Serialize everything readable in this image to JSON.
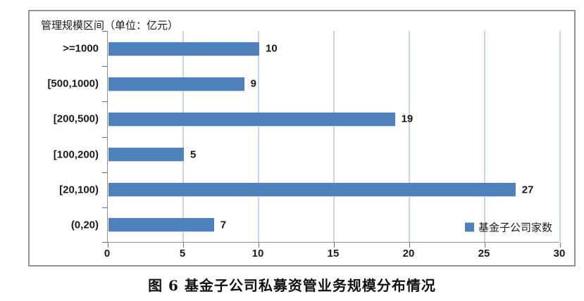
{
  "chart_data": {
    "type": "bar",
    "orientation": "horizontal",
    "title": "管理规模区间（单位：亿元）",
    "categories": [
      ">=1000",
      "[500,1000)",
      "[200,500)",
      "[100,200)",
      "[20,100)",
      "(0,20)"
    ],
    "values": [
      10,
      9,
      19,
      5,
      27,
      7
    ],
    "series_name": "基金子公司家数",
    "xlim": [
      0,
      30
    ],
    "x_ticks": [
      0,
      5,
      10,
      15,
      20,
      25,
      30
    ],
    "grid": "vertical-on",
    "legend_position": "inside-bottom-right",
    "data_labels": "outside-end"
  },
  "colors": {
    "bar": "#4f81bd",
    "gridline": "#c5d5ec",
    "axis": "#8e8e8e",
    "frame_border": "#949494",
    "text": "#1a1a1a"
  },
  "legend": {
    "label": "基金子公司家数"
  },
  "caption": "图 6  基金子公司私募资管业务规模分布情况"
}
